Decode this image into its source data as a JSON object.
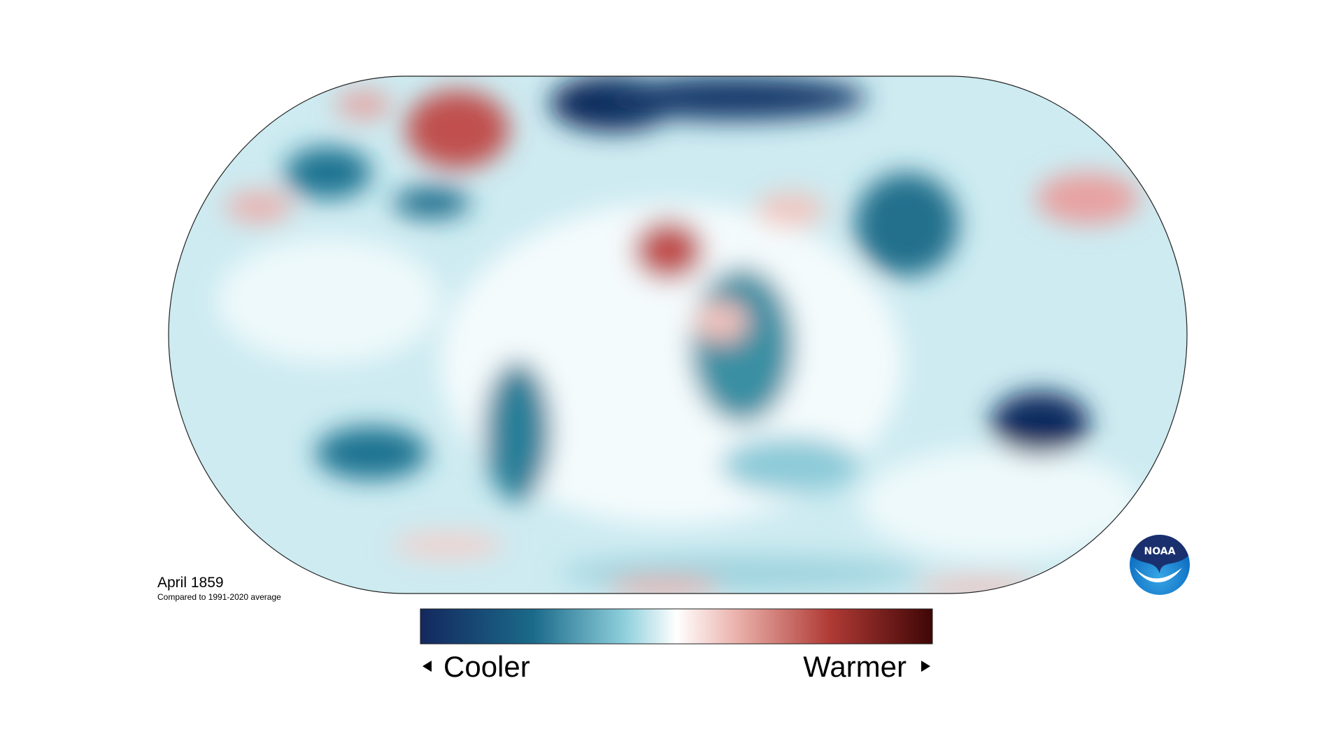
{
  "map": {
    "title": "April 1859",
    "subtitle": "Compared to 1991-2020 average"
  },
  "legend": {
    "low_label": "Cooler",
    "high_label": "Warmer"
  },
  "logo": {
    "text": "NOAA"
  }
}
